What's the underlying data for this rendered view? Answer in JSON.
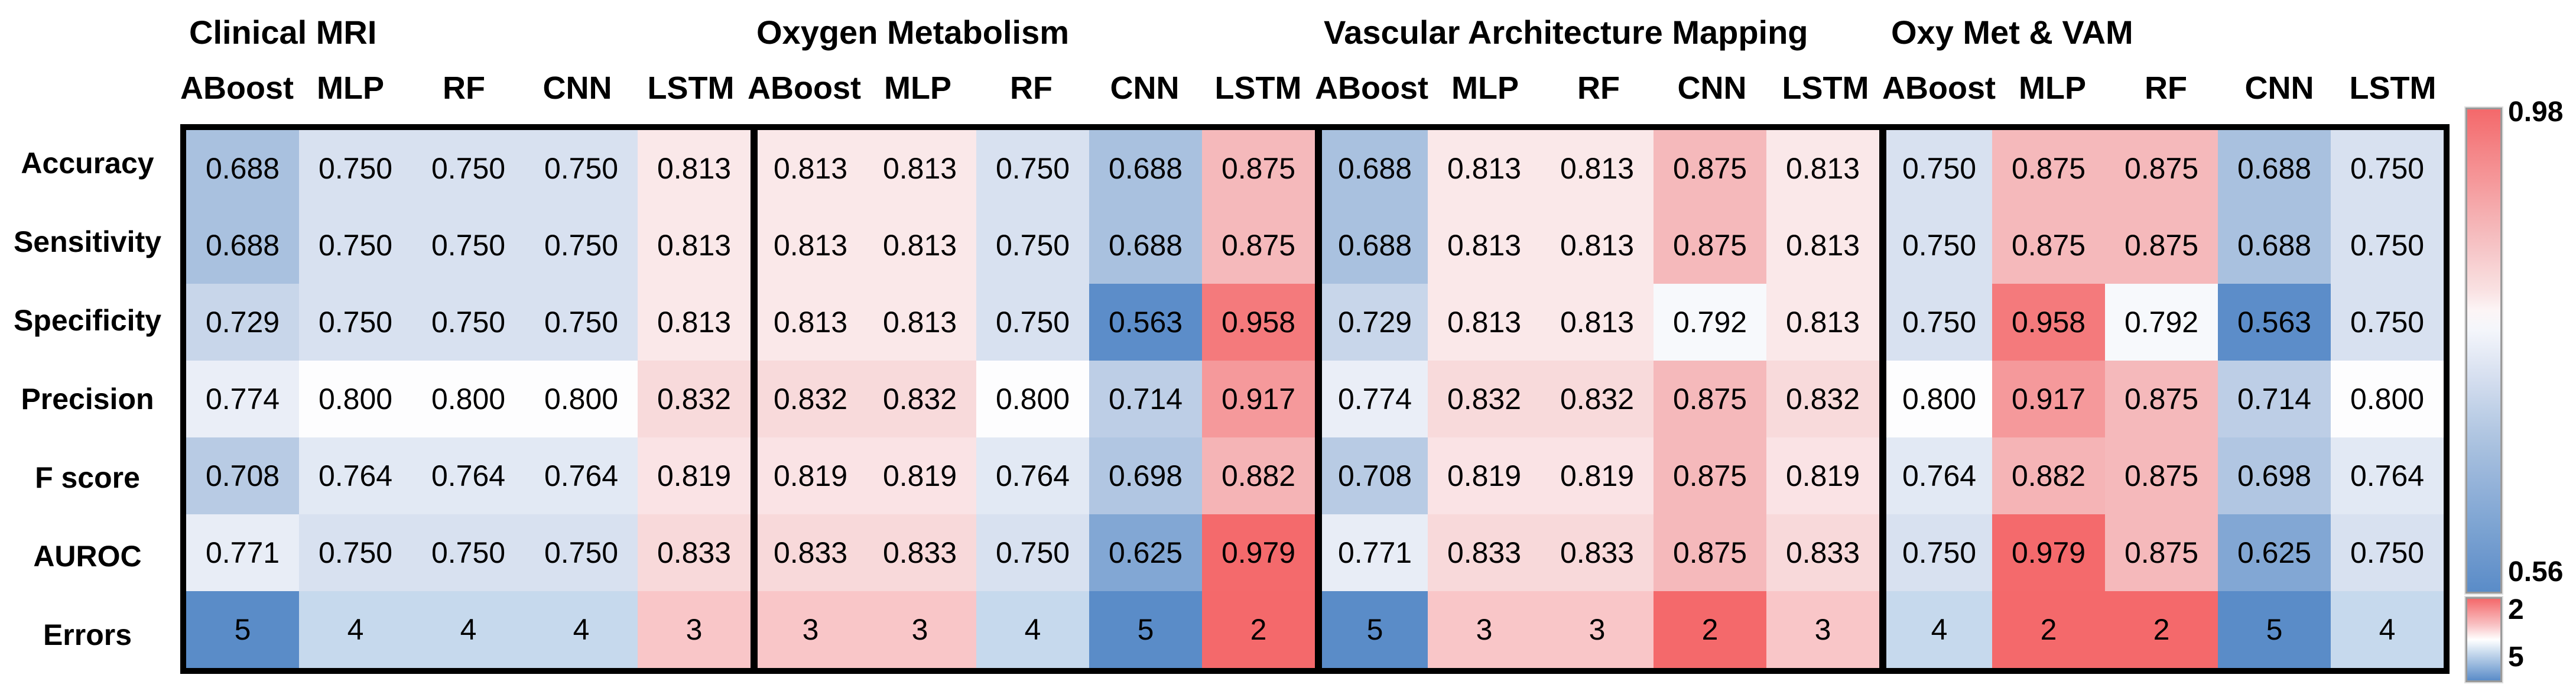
{
  "chart_data": {
    "type": "heatmap",
    "column_groups": [
      "Clinical MRI",
      "Oxygen Metabolism",
      "Vascular Architecture Mapping",
      "Oxy Met & VAM"
    ],
    "model_headers": [
      "ABoost",
      "MLP",
      "RF",
      "CNN",
      "LSTM"
    ],
    "rows": [
      {
        "label": "Accuracy",
        "scale": "metric",
        "values": [
          "0.688",
          "0.750",
          "0.750",
          "0.750",
          "0.813",
          "0.813",
          "0.813",
          "0.750",
          "0.688",
          "0.875",
          "0.688",
          "0.813",
          "0.813",
          "0.875",
          "0.813",
          "0.750",
          "0.875",
          "0.875",
          "0.688",
          "0.750"
        ]
      },
      {
        "label": "Sensitivity",
        "scale": "metric",
        "values": [
          "0.688",
          "0.750",
          "0.750",
          "0.750",
          "0.813",
          "0.813",
          "0.813",
          "0.750",
          "0.688",
          "0.875",
          "0.688",
          "0.813",
          "0.813",
          "0.875",
          "0.813",
          "0.750",
          "0.875",
          "0.875",
          "0.688",
          "0.750"
        ]
      },
      {
        "label": "Specificity",
        "scale": "metric",
        "values": [
          "0.729",
          "0.750",
          "0.750",
          "0.750",
          "0.813",
          "0.813",
          "0.813",
          "0.750",
          "0.563",
          "0.958",
          "0.729",
          "0.813",
          "0.813",
          "0.792",
          "0.813",
          "0.750",
          "0.958",
          "0.792",
          "0.563",
          "0.750"
        ]
      },
      {
        "label": "Precision",
        "scale": "metric",
        "values": [
          "0.774",
          "0.800",
          "0.800",
          "0.800",
          "0.832",
          "0.832",
          "0.832",
          "0.800",
          "0.714",
          "0.917",
          "0.774",
          "0.832",
          "0.832",
          "0.875",
          "0.832",
          "0.800",
          "0.917",
          "0.875",
          "0.714",
          "0.800"
        ]
      },
      {
        "label": "F score",
        "scale": "metric",
        "values": [
          "0.708",
          "0.764",
          "0.764",
          "0.764",
          "0.819",
          "0.819",
          "0.819",
          "0.764",
          "0.698",
          "0.882",
          "0.708",
          "0.819",
          "0.819",
          "0.875",
          "0.819",
          "0.764",
          "0.882",
          "0.875",
          "0.698",
          "0.764"
        ]
      },
      {
        "label": "AUROC",
        "scale": "metric",
        "values": [
          "0.771",
          "0.750",
          "0.750",
          "0.750",
          "0.833",
          "0.833",
          "0.833",
          "0.750",
          "0.625",
          "0.979",
          "0.771",
          "0.833",
          "0.833",
          "0.875",
          "0.833",
          "0.750",
          "0.979",
          "0.875",
          "0.625",
          "0.750"
        ]
      },
      {
        "label": "Errors",
        "scale": "errors",
        "values": [
          "5",
          "4",
          "4",
          "4",
          "3",
          "3",
          "3",
          "4",
          "5",
          "2",
          "5",
          "3",
          "3",
          "2",
          "3",
          "4",
          "2",
          "2",
          "5",
          "4"
        ]
      }
    ],
    "colorbars": {
      "metric": {
        "max_label": "0.98",
        "min_label": "0.56",
        "max": 0.98,
        "min": 0.56
      },
      "errors": {
        "max_label": "2",
        "min_label": "5",
        "max": 2,
        "min": 5
      }
    },
    "metric_anchors": [
      [
        0.56,
        "#5A8CC8"
      ],
      [
        0.688,
        "#A9C1DF"
      ],
      [
        0.75,
        "#D8E1F0"
      ],
      [
        0.8,
        "#FDFDFE"
      ],
      [
        0.813,
        "#FAE8E9"
      ],
      [
        0.875,
        "#F5B9BB"
      ],
      [
        0.98,
        "#F4696B"
      ]
    ],
    "error_anchors": [
      [
        2,
        "#F4696B"
      ],
      [
        3,
        "#F9C6C8"
      ],
      [
        3.5,
        "#FFFFFF"
      ],
      [
        4,
        "#C6D9ED"
      ],
      [
        5,
        "#5A8CC8"
      ]
    ]
  }
}
